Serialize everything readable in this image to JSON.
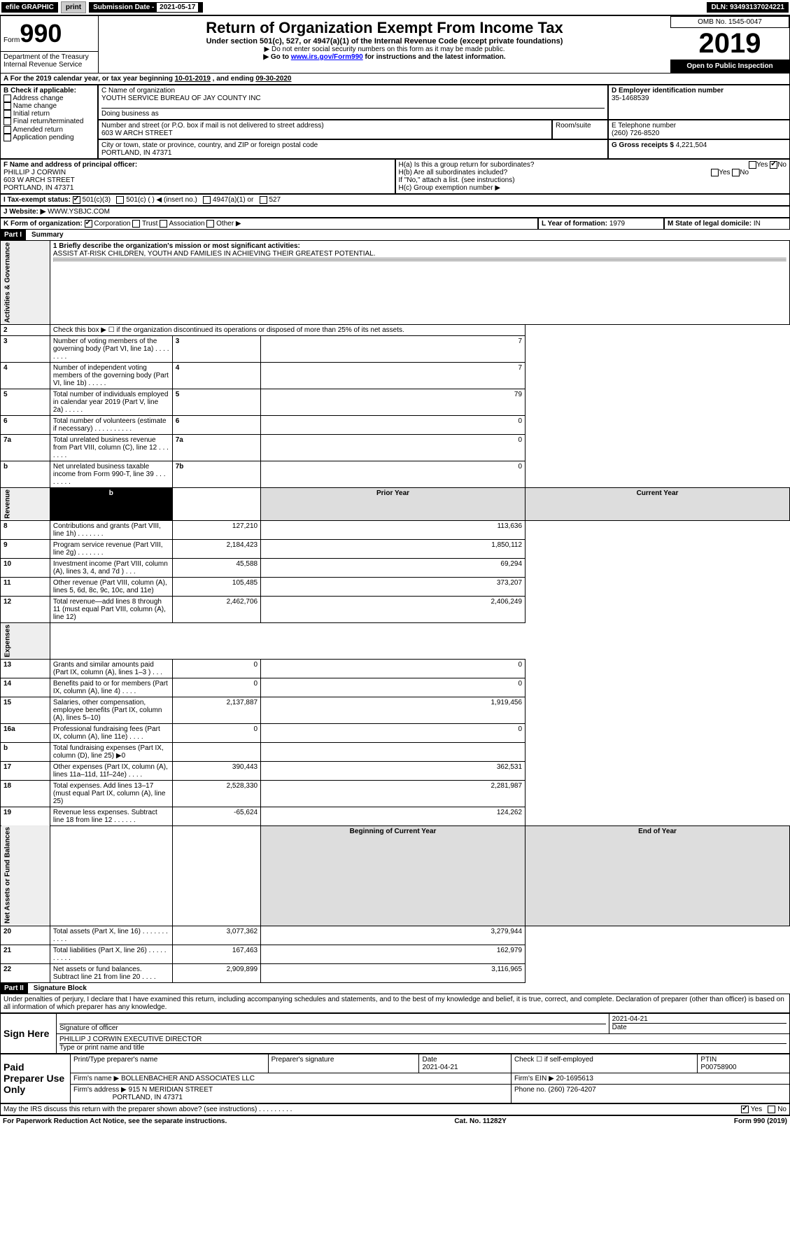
{
  "topbar": {
    "efile": "efile GRAPHIC",
    "print": "print",
    "subm_label": "Submission Date - ",
    "subm_date": "2021-05-17",
    "dln_label": "DLN: ",
    "dln": "93493137024221"
  },
  "header": {
    "form_word": "Form",
    "form_no": "990",
    "dept": "Department of the Treasury\nInternal Revenue Service",
    "title": "Return of Organization Exempt From Income Tax",
    "subtitle": "Under section 501(c), 527, or 4947(a)(1) of the Internal Revenue Code (except private foundations)",
    "note1": "▶ Do not enter social security numbers on this form as it may be made public.",
    "note2_a": "▶ Go to ",
    "note2_link": "www.irs.gov/Form990",
    "note2_b": " for instructions and the latest information.",
    "omb": "OMB No. 1545-0047",
    "year": "2019",
    "open": "Open to Public Inspection"
  },
  "period": {
    "a": "A For the 2019 calendar year, or tax year beginning ",
    "begin": "10-01-2019",
    "mid": " , and ending ",
    "end": "09-30-2020"
  },
  "boxB": {
    "label": "B Check if applicable:",
    "opts": [
      "Address change",
      "Name change",
      "Initial return",
      "Final return/terminated",
      "Amended return",
      "Application pending"
    ]
  },
  "boxC": {
    "name_label": "C Name of organization",
    "name": "YOUTH SERVICE BUREAU OF JAY COUNTY INC",
    "dba_label": "Doing business as",
    "street_label": "Number and street (or P.O. box if mail is not delivered to street address)",
    "room_label": "Room/suite",
    "street": "603 W ARCH STREET",
    "city_label": "City or town, state or province, country, and ZIP or foreign postal code",
    "city": "PORTLAND, IN  47371"
  },
  "boxD": {
    "label": "D Employer identification number",
    "value": "35-1468539"
  },
  "boxE": {
    "label": "E Telephone number",
    "value": "(260) 726-8520"
  },
  "boxG": {
    "label": "G Gross receipts $ ",
    "value": "4,221,504"
  },
  "boxF": {
    "label": "F Name and address of principal officer:",
    "name": "PHILLIP J CORWIN",
    "addr1": "603 W ARCH STREET",
    "addr2": "PORTLAND, IN  47371"
  },
  "boxH": {
    "a": "H(a)  Is this a group return for subordinates?",
    "b": "H(b)  Are all subordinates included?",
    "note": "If \"No,\" attach a list. (see instructions)",
    "c": "H(c)  Group exemption number ▶",
    "yes": "Yes",
    "no": "No"
  },
  "boxI": {
    "label": "I  Tax-exempt status:",
    "o1": "501(c)(3)",
    "o2": "501(c) (   ) ◀ (insert no.)",
    "o3": "4947(a)(1) or",
    "o4": "527"
  },
  "boxJ": {
    "label": "J  Website: ▶ ",
    "value": "WWW.YSBJC.COM"
  },
  "boxK": {
    "label": "K Form of organization:",
    "o1": "Corporation",
    "o2": "Trust",
    "o3": "Association",
    "o4": "Other ▶"
  },
  "boxL": {
    "label": "L Year of formation: ",
    "value": "1979"
  },
  "boxM": {
    "label": "M State of legal domicile: ",
    "value": "IN"
  },
  "partI": {
    "head": "Part I",
    "title": "Summary"
  },
  "q1": {
    "label": "1  Briefly describe the organization's mission or most significant activities:",
    "text": "ASSIST AT-RISK CHILDREN, YOUTH AND FAMILIES IN ACHIEVING THEIR GREATEST POTENTIAL."
  },
  "lines_gov": [
    {
      "n": "2",
      "t": "Check this box ▶ ☐  if the organization discontinued its operations or disposed of more than 25% of its net assets.",
      "k": "",
      "v": ""
    },
    {
      "n": "3",
      "t": "Number of voting members of the governing body (Part VI, line 1a)  .    .    .    .    .    .    .    .",
      "k": "3",
      "v": "7"
    },
    {
      "n": "4",
      "t": "Number of independent voting members of the governing body (Part VI, line 1b)   .    .    .    .    .",
      "k": "4",
      "v": "7"
    },
    {
      "n": "5",
      "t": "Total number of individuals employed in calendar year 2019 (Part V, line 2a)   .    .    .    .    .",
      "k": "5",
      "v": "79"
    },
    {
      "n": "6",
      "t": "Total number of volunteers (estimate if necessary)   .    .    .    .    .    .    .    .    .    .",
      "k": "6",
      "v": "0"
    },
    {
      "n": "7a",
      "t": "Total unrelated business revenue from Part VIII, column (C), line 12   .    .    .    .    .    .    .",
      "k": "7a",
      "v": "0"
    },
    {
      "n": "b",
      "t": "Net unrelated business taxable income from Form 990-T, line 39   .    .    .    .    .    .    .    .",
      "k": "7b",
      "v": "0"
    }
  ],
  "col_heads": {
    "prior": "Prior Year",
    "current": "Current Year",
    "boy": "Beginning of Current Year",
    "eoy": "End of Year"
  },
  "lines_rev": [
    {
      "n": "8",
      "t": "Contributions and grants (Part VIII, line 1h)   .    .    .    .    .    .    .",
      "p": "127,210",
      "c": "113,636"
    },
    {
      "n": "9",
      "t": "Program service revenue (Part VIII, line 2g)   .    .    .    .    .    .    .",
      "p": "2,184,423",
      "c": "1,850,112"
    },
    {
      "n": "10",
      "t": "Investment income (Part VIII, column (A), lines 3, 4, and 7d )   .    .    .",
      "p": "45,588",
      "c": "69,294"
    },
    {
      "n": "11",
      "t": "Other revenue (Part VIII, column (A), lines 5, 6d, 8c, 9c, 10c, and 11e)",
      "p": "105,485",
      "c": "373,207"
    },
    {
      "n": "12",
      "t": "Total revenue—add lines 8 through 11 (must equal Part VIII, column (A), line 12)",
      "p": "2,462,706",
      "c": "2,406,249"
    }
  ],
  "lines_exp": [
    {
      "n": "13",
      "t": "Grants and similar amounts paid (Part IX, column (A), lines 1–3 )   .    .    .",
      "p": "0",
      "c": "0"
    },
    {
      "n": "14",
      "t": "Benefits paid to or for members (Part IX, column (A), line 4)   .    .    .    .",
      "p": "0",
      "c": "0"
    },
    {
      "n": "15",
      "t": "Salaries, other compensation, employee benefits (Part IX, column (A), lines 5–10)",
      "p": "2,137,887",
      "c": "1,919,456"
    },
    {
      "n": "16a",
      "t": "Professional fundraising fees (Part IX, column (A), line 11e)   .    .    .    .",
      "p": "0",
      "c": "0"
    },
    {
      "n": "b",
      "t": "Total fundraising expenses (Part IX, column (D), line 25) ▶0",
      "p": "",
      "c": ""
    },
    {
      "n": "17",
      "t": "Other expenses (Part IX, column (A), lines 11a–11d, 11f–24e)   .    .    .    .",
      "p": "390,443",
      "c": "362,531"
    },
    {
      "n": "18",
      "t": "Total expenses. Add lines 13–17 (must equal Part IX, column (A), line 25)",
      "p": "2,528,330",
      "c": "2,281,987"
    },
    {
      "n": "19",
      "t": "Revenue less expenses. Subtract line 18 from line 12   .    .    .    .    .    .",
      "p": "-65,624",
      "c": "124,262"
    }
  ],
  "lines_net": [
    {
      "n": "20",
      "t": "Total assets (Part X, line 16)   .    .    .    .    .    .    .    .    .    .    .",
      "p": "3,077,362",
      "c": "3,279,944"
    },
    {
      "n": "21",
      "t": "Total liabilities (Part X, line 26)   .    .    .    .    .    .    .    .    .    .",
      "p": "167,463",
      "c": "162,979"
    },
    {
      "n": "22",
      "t": "Net assets or fund balances. Subtract line 21 from line 20   .    .    .    .",
      "p": "2,909,899",
      "c": "3,116,965"
    }
  ],
  "partII": {
    "head": "Part II",
    "title": "Signature Block"
  },
  "penalty": "Under penalties of perjury, I declare that I have examined this return, including accompanying schedules and statements, and to the best of my knowledge and belief, it is true, correct, and complete. Declaration of preparer (other than officer) is based on all information of which preparer has any knowledge.",
  "sign": {
    "here": "Sign Here",
    "sig_label": "Signature of officer",
    "date_label": "Date",
    "date": "2021-04-21",
    "name": "PHILLIP J CORWIN  EXECUTIVE DIRECTOR",
    "name_label": "Type or print name and title"
  },
  "prep": {
    "head": "Paid Preparer Use Only",
    "h1": "Print/Type preparer's name",
    "h2": "Preparer's signature",
    "h3": "Date",
    "h4": "Check ☐ if self-employed",
    "h5": "PTIN",
    "date": "2021-04-21",
    "ptin": "P00758900",
    "firm_label": "Firm's name    ▶ ",
    "firm": "BOLLENBACHER AND ASSOCIATES LLC",
    "ein_label": "Firm's EIN ▶ ",
    "ein": "20-1695613",
    "addr_label": "Firm's address ▶ ",
    "addr1": "915 N MERIDIAN STREET",
    "addr2": "PORTLAND, IN  47371",
    "phone_label": "Phone no. ",
    "phone": "(260) 726-4207"
  },
  "discuss": {
    "q": "May the IRS discuss this return with the preparer shown above? (see instructions)   .    .    .    .    .    .    .    .    .",
    "yes": "Yes",
    "no": "No"
  },
  "footer": {
    "left": "For Paperwork Reduction Act Notice, see the separate instructions.",
    "mid": "Cat. No. 11282Y",
    "right": "Form 990 (2019)"
  },
  "side_labels": {
    "gov": "Activities & Governance",
    "rev": "Revenue",
    "exp": "Expenses",
    "net": "Net Assets or Fund Balances"
  }
}
